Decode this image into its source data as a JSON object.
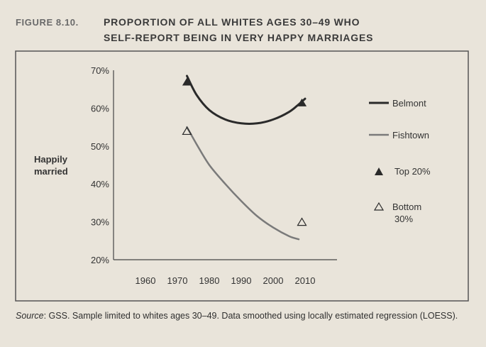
{
  "figure": {
    "label": "FIGURE 8.10.",
    "title_line1": "PROPORTION OF ALL WHITES AGES 30–49 WHO",
    "title_line2": "SELF-REPORT BEING IN VERY HAPPY MARRIAGES"
  },
  "source": {
    "prefix": "Source",
    "text": ": GSS. Sample limited to whites ages 30–49. Data smoothed using locally estimated regression (LOESS)."
  },
  "colors": {
    "background": "#e9e4da",
    "belmont": "#2a2a2a",
    "fishtown": "#7a7a7a",
    "frame": "#555555"
  },
  "chart_data": {
    "type": "line",
    "ylabel_line1": "Happily",
    "ylabel_line2": "married",
    "xlabel": "",
    "xlim": [
      1950,
      2020
    ],
    "ylim": [
      20,
      70
    ],
    "x_ticks": [
      "1960",
      "1970",
      "1980",
      "1990",
      "2000",
      "2010"
    ],
    "y_ticks": [
      "70%",
      "60%",
      "50%",
      "40%",
      "30%",
      "20%"
    ],
    "series": [
      {
        "name": "Belmont",
        "color": "#2a2a2a",
        "x": [
          1973,
          1976,
          1980,
          1985,
          1990,
          1995,
          2000,
          2005,
          2008,
          2010
        ],
        "y": [
          68.5,
          63.5,
          59.5,
          57,
          56,
          56,
          57,
          59,
          61,
          62.5
        ]
      },
      {
        "name": "Fishtown",
        "color": "#7a7a7a",
        "x": [
          1973,
          1976,
          1980,
          1985,
          1990,
          1995,
          2000,
          2005,
          2008
        ],
        "y": [
          55,
          50.5,
          45,
          40,
          35.5,
          31.5,
          28.5,
          26.2,
          25.4
        ]
      }
    ],
    "markers": [
      {
        "name": "Top 20%",
        "shape": "filled-triangle",
        "x": 1973,
        "y": 67,
        "color": "#2a2a2a"
      },
      {
        "name": "Top 20%",
        "shape": "filled-triangle",
        "x": 2009,
        "y": 61.5,
        "color": "#2a2a2a"
      },
      {
        "name": "Bottom 30%",
        "shape": "open-triangle",
        "x": 1973,
        "y": 54,
        "color": "#2a2a2a"
      },
      {
        "name": "Bottom 30%",
        "shape": "open-triangle",
        "x": 2009,
        "y": 30,
        "color": "#2a2a2a"
      }
    ],
    "legend": {
      "placement": "right",
      "items": [
        {
          "label": "Belmont",
          "kind": "line",
          "color": "#2a2a2a"
        },
        {
          "label": "Fishtown",
          "kind": "line",
          "color": "#7a7a7a"
        },
        {
          "label": "Top 20%",
          "kind": "filled-triangle"
        },
        {
          "label_line1": "Bottom",
          "label_line2": "30%",
          "kind": "open-triangle"
        }
      ]
    }
  }
}
